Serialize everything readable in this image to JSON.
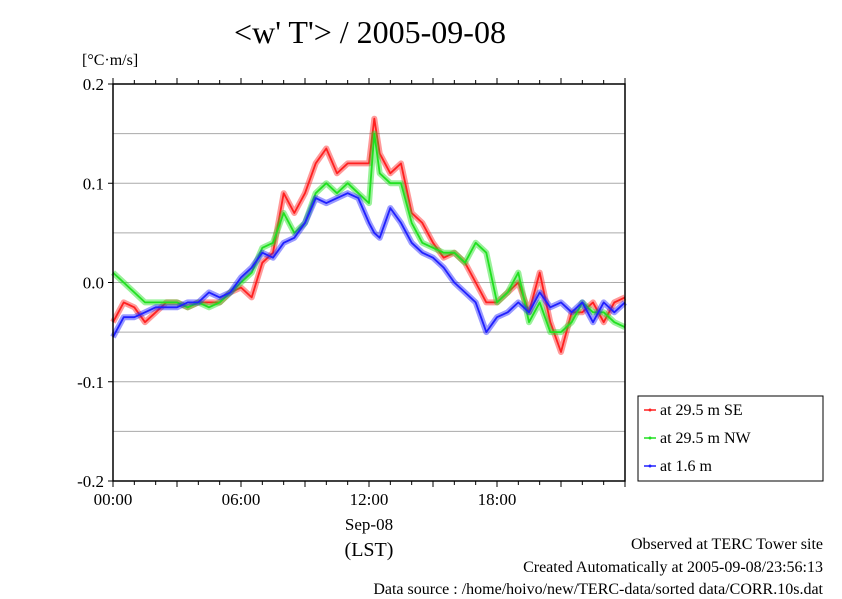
{
  "chart_data": {
    "type": "line",
    "title": "<w' T'> / 2005-09-08",
    "ylabel": "[°C·m/s]",
    "xlabel": "(LST)",
    "date_label": "Sep-08",
    "xlim_hours": [
      0,
      24
    ],
    "ylim": [
      -0.2,
      0.2
    ],
    "grid": true,
    "legend_position": "right-bottom-outside",
    "x_ticks": [
      {
        "hour": 0,
        "label": "00:00"
      },
      {
        "hour": 6,
        "label": "06:00"
      },
      {
        "hour": 12,
        "label": "12:00"
      },
      {
        "hour": 18,
        "label": "18:00"
      }
    ],
    "y_ticks": [
      {
        "value": 0.2,
        "label": "0.2"
      },
      {
        "value": 0.1,
        "label": "0.1"
      },
      {
        "value": 0.0,
        "label": "0.0"
      },
      {
        "value": -0.1,
        "label": "-0.1"
      },
      {
        "value": -0.2,
        "label": "-0.2"
      }
    ],
    "x_hours": [
      0,
      0.5,
      1,
      1.5,
      2,
      2.5,
      3,
      3.5,
      4,
      4.5,
      5,
      5.5,
      6,
      6.5,
      7,
      7.5,
      8,
      8.5,
      9,
      9.5,
      10,
      10.5,
      11,
      11.5,
      12,
      12.25,
      12.5,
      13,
      13.5,
      14,
      14.5,
      15,
      15.5,
      16,
      16.5,
      17,
      17.5,
      18,
      18.5,
      19,
      19.5,
      20,
      20.5,
      21,
      21.5,
      22,
      22.5,
      23,
      23.5,
      24
    ],
    "series": [
      {
        "name": "at 29.5 m SE",
        "color": "#ff2020",
        "values": [
          -0.04,
          -0.02,
          -0.025,
          -0.04,
          -0.03,
          -0.02,
          -0.02,
          -0.025,
          -0.02,
          -0.02,
          -0.02,
          -0.01,
          -0.005,
          -0.015,
          0.02,
          0.03,
          0.09,
          0.07,
          0.09,
          0.12,
          0.135,
          0.11,
          0.12,
          0.12,
          0.12,
          0.165,
          0.13,
          0.11,
          0.12,
          0.07,
          0.06,
          0.04,
          0.025,
          0.03,
          0.02,
          0.0,
          -0.02,
          -0.02,
          -0.01,
          0.0,
          -0.03,
          0.01,
          -0.04,
          -0.07,
          -0.03,
          -0.03,
          -0.02,
          -0.04,
          -0.02,
          -0.015
        ]
      },
      {
        "name": "at 29.5 m NW",
        "color": "#20e020",
        "values": [
          0.01,
          0.0,
          -0.01,
          -0.02,
          -0.02,
          -0.02,
          -0.02,
          -0.025,
          -0.02,
          -0.025,
          -0.02,
          -0.01,
          0.0,
          0.01,
          0.035,
          0.04,
          0.07,
          0.05,
          0.06,
          0.09,
          0.1,
          0.09,
          0.1,
          0.09,
          0.08,
          0.15,
          0.11,
          0.1,
          0.1,
          0.06,
          0.04,
          0.035,
          0.03,
          0.03,
          0.02,
          0.04,
          0.03,
          -0.02,
          -0.01,
          0.01,
          -0.04,
          -0.02,
          -0.05,
          -0.05,
          -0.04,
          -0.02,
          -0.03,
          -0.03,
          -0.04,
          -0.045
        ]
      },
      {
        "name": "at 1.6 m",
        "color": "#2020ff",
        "values": [
          -0.055,
          -0.035,
          -0.035,
          -0.03,
          -0.025,
          -0.025,
          -0.025,
          -0.02,
          -0.02,
          -0.01,
          -0.015,
          -0.01,
          0.005,
          0.015,
          0.03,
          0.025,
          0.04,
          0.045,
          0.06,
          0.085,
          0.08,
          0.085,
          0.09,
          0.085,
          0.06,
          0.05,
          0.045,
          0.075,
          0.06,
          0.04,
          0.03,
          0.025,
          0.015,
          0.0,
          -0.01,
          -0.02,
          -0.05,
          -0.035,
          -0.03,
          -0.02,
          -0.03,
          -0.01,
          -0.025,
          -0.02,
          -0.03,
          -0.02,
          -0.04,
          -0.02,
          -0.03,
          -0.02
        ]
      }
    ]
  },
  "footer": {
    "observed": "Observed at TERC Tower site",
    "created": "Created Automatically at 2005-09-08/23:56:13",
    "source": "Data source : /home/hoivo/new/TERC-data/sorted  data/CORR.10s.dat"
  }
}
